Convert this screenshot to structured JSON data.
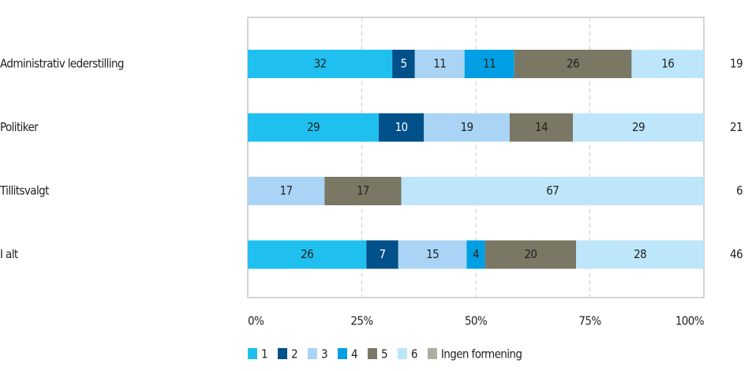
{
  "chart_data": {
    "type": "stacked_bar_100",
    "categories": [
      "Administrativ lederstilling",
      "Politiker",
      "Tillitsvalgt",
      "I alt"
    ],
    "series": [
      {
        "name": "1",
        "color": "#1fc0ef",
        "values": [
          32,
          29,
          null,
          26
        ]
      },
      {
        "name": "2",
        "color": "#00508a",
        "values": [
          5,
          10,
          null,
          7
        ]
      },
      {
        "name": "3",
        "color": "#a9d4f5",
        "values": [
          11,
          19,
          17,
          15
        ]
      },
      {
        "name": "4",
        "color": "#009fe3",
        "values": [
          11,
          null,
          null,
          4
        ]
      },
      {
        "name": "5",
        "color": "#7a7765",
        "values": [
          26,
          14,
          17,
          20
        ]
      },
      {
        "name": "6",
        "color": "#bde6fa",
        "values": [
          16,
          29,
          67,
          28
        ]
      },
      {
        "name": "Ingen formening",
        "color": "#aeae9f",
        "values": [
          null,
          null,
          null,
          null
        ]
      }
    ],
    "totals": [
      19,
      21,
      6,
      46
    ],
    "xlim": [
      0,
      100
    ],
    "xticks": [
      {
        "value": 0,
        "label": "0%"
      },
      {
        "value": 25,
        "label": "25%"
      },
      {
        "value": 50,
        "label": "50%"
      },
      {
        "value": 75,
        "label": "75%"
      },
      {
        "value": 100,
        "label": "100%"
      }
    ],
    "grid": true
  }
}
